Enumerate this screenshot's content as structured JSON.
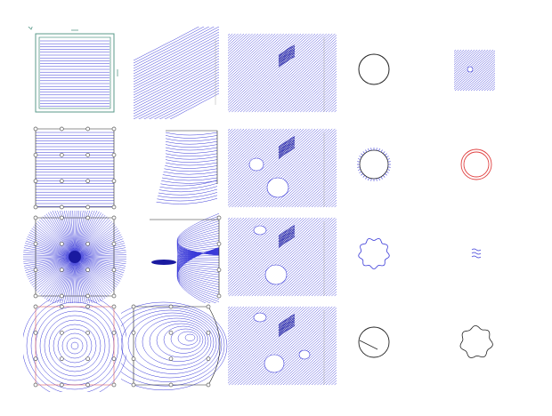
{
  "grid": {
    "rows": 4,
    "columns": 5,
    "panels": [
      {
        "row": 1,
        "col": 1,
        "kind": "framed-hatch"
      },
      {
        "row": 1,
        "col": 2,
        "kind": "warped-hatch"
      },
      {
        "row": 1,
        "col": 3,
        "kind": "hatch-with-vortex"
      },
      {
        "row": 1,
        "col": 4,
        "kind": "circle"
      },
      {
        "row": 1,
        "col": 5,
        "kind": "small-hatch-square"
      },
      {
        "row": 2,
        "col": 1,
        "kind": "hatch-with-control-points"
      },
      {
        "row": 2,
        "col": 2,
        "kind": "distorted-hatch"
      },
      {
        "row": 2,
        "col": 3,
        "kind": "hatch-with-holes"
      },
      {
        "row": 2,
        "col": 4,
        "kind": "circle-with-ticks"
      },
      {
        "row": 2,
        "col": 5,
        "kind": "double-circle"
      },
      {
        "row": 3,
        "col": 1,
        "kind": "radial-burst"
      },
      {
        "row": 3,
        "col": 2,
        "kind": "parabolic-field"
      },
      {
        "row": 3,
        "col": 3,
        "kind": "hatch-with-holes"
      },
      {
        "row": 3,
        "col": 4,
        "kind": "wobbly-circle"
      },
      {
        "row": 3,
        "col": 5,
        "kind": "wavy-lines"
      },
      {
        "row": 4,
        "col": 1,
        "kind": "concentric-circles"
      },
      {
        "row": 4,
        "col": 2,
        "kind": "offset-ellipses"
      },
      {
        "row": 4,
        "col": 3,
        "kind": "hatch-with-holes"
      },
      {
        "row": 4,
        "col": 4,
        "kind": "circle-with-chord"
      },
      {
        "row": 4,
        "col": 5,
        "kind": "bumpy-circle"
      }
    ]
  },
  "colors": {
    "background": "#ffffff",
    "hatch": "#3a3ad8",
    "hatch_dark": "#1a1aa0",
    "frame": "#5a9a8a",
    "outline": "#222222",
    "control_point": "#555555",
    "accent_red": "#e04040",
    "guide_gray": "#aaaaaa"
  }
}
